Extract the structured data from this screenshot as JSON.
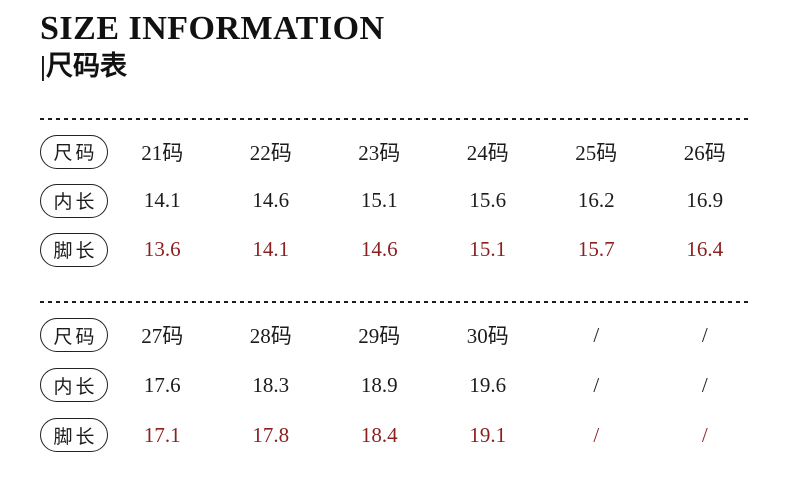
{
  "header": {
    "title": "SIZE INFORMATION",
    "subtitle": "|尺码表"
  },
  "colors": {
    "text_black": "#1c1c1c",
    "value_red": "#8c1f1f",
    "background": "#ffffff",
    "pill_border": "#222222"
  },
  "table": {
    "sections": [
      {
        "rows": [
          {
            "label": "尺码",
            "style": "black",
            "values": [
              "21码",
              "22码",
              "23码",
              "24码",
              "25码",
              "26码"
            ]
          },
          {
            "label": "内长",
            "style": "black",
            "values": [
              "14.1",
              "14.6",
              "15.1",
              "15.6",
              "16.2",
              "16.9"
            ]
          },
          {
            "label": "脚长",
            "style": "red",
            "values": [
              "13.6",
              "14.1",
              "14.6",
              "15.1",
              "15.7",
              "16.4"
            ]
          }
        ]
      },
      {
        "rows": [
          {
            "label": "尺码",
            "style": "black",
            "values": [
              "27码",
              "28码",
              "29码",
              "30码",
              "/",
              "/"
            ]
          },
          {
            "label": "内长",
            "style": "black",
            "values": [
              "17.6",
              "18.3",
              "18.9",
              "19.6",
              "/",
              "/"
            ]
          },
          {
            "label": "脚长",
            "style": "red",
            "values": [
              "17.1",
              "17.8",
              "18.4",
              "19.1",
              "/",
              "/"
            ]
          }
        ]
      }
    ]
  }
}
